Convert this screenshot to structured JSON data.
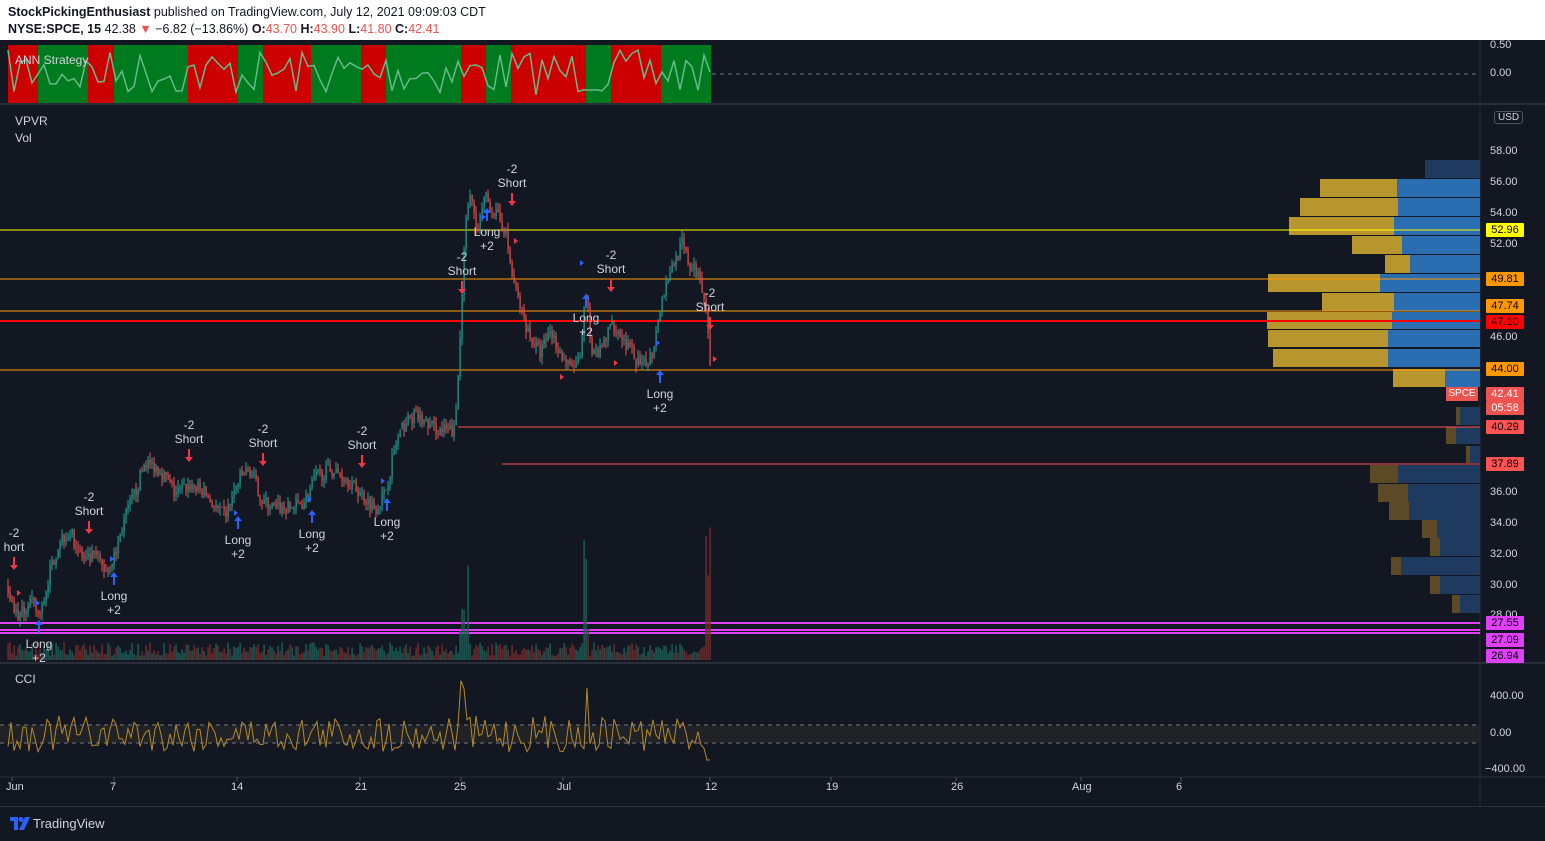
{
  "header": {
    "author": "StockPickingEnthusiast",
    "published_text": "published on TradingView.com, July 12, 2021 09:09:03 CDT",
    "symbol": "NYSE:SPCE, 15",
    "last": "42.38",
    "change": "−6.82 (−13.86%)",
    "o_label": "O:",
    "o": "43.70",
    "h_label": "H:",
    "h": "43.90",
    "l_label": "L:",
    "l": "41.80",
    "c_label": "C:",
    "c": "42.41"
  },
  "panes": {
    "strategy_title": "ANN Strategy",
    "vpvr_title": "VPVR",
    "vol_title": "Vol",
    "cci_title": "CCI",
    "currency": "USD"
  },
  "strategy_axis": [
    "0.50",
    "0.00"
  ],
  "price_axis": [
    "58.00",
    "56.00",
    "54.00",
    "52.00",
    "46.00",
    "36.00",
    "34.00",
    "32.00",
    "30.00",
    "28.00"
  ],
  "cci_axis": [
    "400.00",
    "0.00",
    "−400.00"
  ],
  "price_tags": [
    {
      "label": "52.96",
      "bg": "#ffff00",
      "fg": "#000000"
    },
    {
      "label": "49.81",
      "bg": "#ff9800",
      "fg": "#000000"
    },
    {
      "label": "47.74",
      "bg": "#ff9800",
      "fg": "#000000"
    },
    {
      "label": "47.10",
      "bg": "#ff0000",
      "fg": "#000000"
    },
    {
      "label": "44.00",
      "bg": "#ff9800",
      "fg": "#000000"
    },
    {
      "label": "42.41",
      "bg": "#ef5350",
      "fg": "#ffffff"
    },
    {
      "label": "05:58",
      "bg": "#ef5350",
      "fg": "#ffffff"
    },
    {
      "label": "40.29",
      "bg": "#ff5252",
      "fg": "#000000"
    },
    {
      "label": "37.89",
      "bg": "#ff5252",
      "fg": "#000000"
    },
    {
      "label": "27.55",
      "bg": "#e040fb",
      "fg": "#000000"
    },
    {
      "label": "27.09",
      "bg": "#e040fb",
      "fg": "#000000"
    },
    {
      "label": "26.94",
      "bg": "#e040fb",
      "fg": "#000000"
    }
  ],
  "symbol_badge": "SPCE",
  "x_axis": [
    "Jun",
    "7",
    "14",
    "21",
    "25",
    "Jul",
    "12",
    "19",
    "26",
    "Aug",
    "6"
  ],
  "signals": [
    {
      "kind": "short",
      "qty": "-2",
      "text": "hort"
    },
    {
      "kind": "long",
      "qty": "+2",
      "text": "Long"
    },
    {
      "kind": "short",
      "qty": "-2",
      "text": "Short"
    },
    {
      "kind": "long",
      "qty": "+2",
      "text": "Long"
    },
    {
      "kind": "short",
      "qty": "-2",
      "text": "Short"
    },
    {
      "kind": "long",
      "qty": "+2",
      "text": "Long"
    },
    {
      "kind": "short",
      "qty": "-2",
      "text": "Short"
    },
    {
      "kind": "long",
      "qty": "+2",
      "text": "Long"
    },
    {
      "kind": "short",
      "qty": "-2",
      "text": "Short"
    },
    {
      "kind": "long",
      "qty": "+2",
      "text": "Long"
    },
    {
      "kind": "short",
      "qty": "-2",
      "text": "Short"
    },
    {
      "kind": "long",
      "qty": "+2",
      "text": "Long"
    },
    {
      "kind": "short",
      "qty": "-2",
      "text": "Short"
    },
    {
      "kind": "long",
      "qty": "+2",
      "text": "Long"
    },
    {
      "kind": "short",
      "qty": "-2",
      "text": "Short"
    },
    {
      "kind": "long",
      "qty": "+2",
      "text": "Long"
    },
    {
      "kind": "short",
      "qty": "-2",
      "text": "Short"
    }
  ],
  "footer": {
    "brand": "TradingView"
  },
  "colors": {
    "bg": "#131722",
    "up": "#26a69a",
    "down": "#ef5350",
    "long_arrow": "#2962ff",
    "short_arrow": "#f23645",
    "vp_up": "#b8962e",
    "vp_down": "#2a6db0",
    "cci": "#b38b2d"
  }
}
